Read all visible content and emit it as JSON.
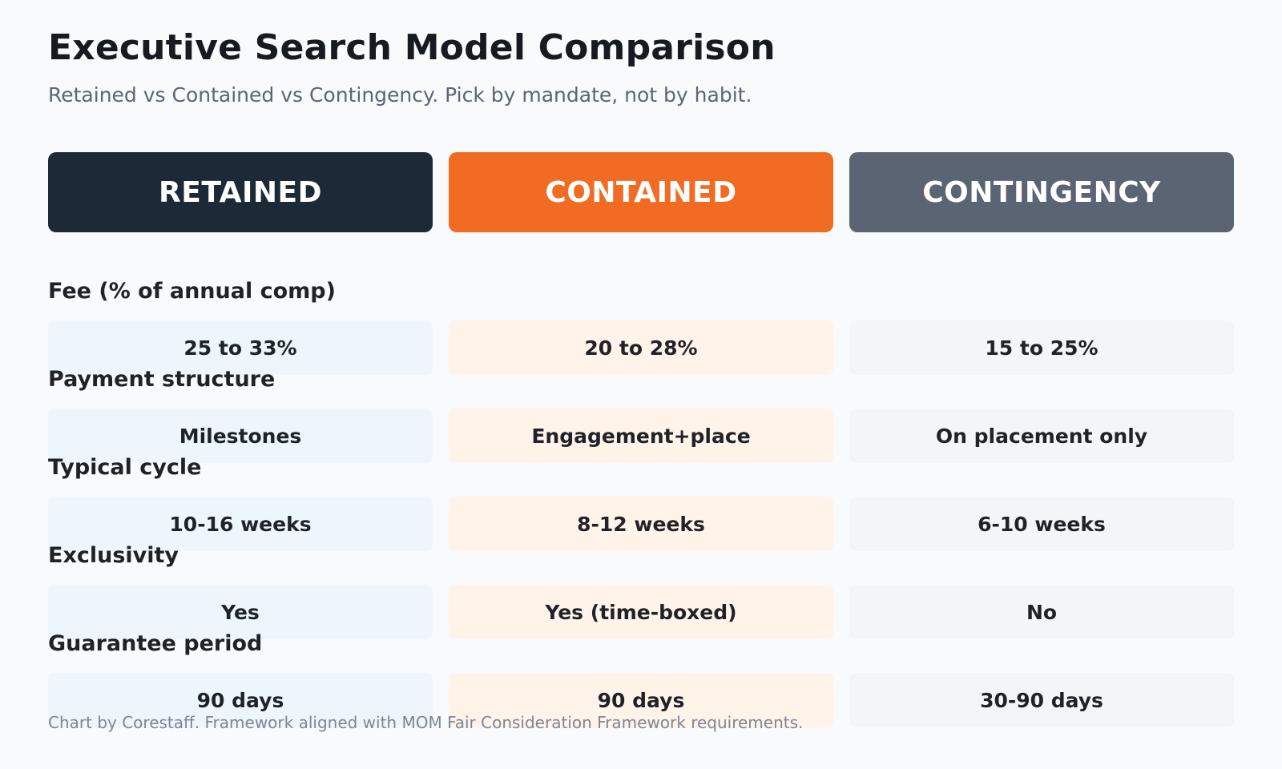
{
  "title": "Executive Search Model Comparison",
  "subtitle": "Retained vs Contained vs Contingency. Pick by mandate, not by habit.",
  "models": [
    {
      "label": "RETAINED",
      "header_color": "#1c2a38",
      "cell_color": "#eef6fd"
    },
    {
      "label": "CONTAINED",
      "header_color": "#f26b22",
      "cell_color": "#fff3ea"
    },
    {
      "label": "CONTINGENCY",
      "header_color": "#5b6472",
      "cell_color": "#f4f5f7"
    }
  ],
  "criteria": [
    {
      "label": "Fee (% of annual comp)",
      "values": [
        "25 to 33%",
        "20 to 28%",
        "15 to 25%"
      ]
    },
    {
      "label": "Payment structure",
      "values": [
        "Milestones",
        "Engagement+place",
        "On placement only"
      ]
    },
    {
      "label": "Typical cycle",
      "values": [
        "10-16 weeks",
        "8-12 weeks",
        "6-10 weeks"
      ]
    },
    {
      "label": "Exclusivity",
      "values": [
        "Yes",
        "Yes (time-boxed)",
        "No"
      ]
    },
    {
      "label": "Guarantee period",
      "values": [
        "90 days",
        "90 days",
        "30-90 days"
      ]
    }
  ],
  "footer": "Chart by Corestaff. Framework aligned with MOM Fair Consideration Framework requirements."
}
